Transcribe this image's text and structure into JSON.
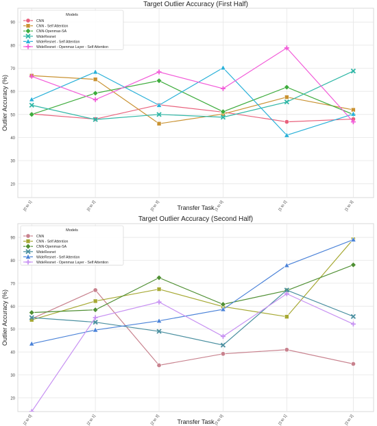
{
  "chart_data": [
    {
      "type": "line",
      "title": "Target Outlier Accuracy (First Half)",
      "xlabel": "Transfer Task",
      "ylabel": "Outlier Accuracy (%)",
      "categories": [
        "[0 to 1]",
        "[0 to 2]",
        "[0 to 3]",
        "[1 to 0]",
        "[1 to 2]",
        "[1 to 3]"
      ],
      "ylim": [
        14,
        96
      ],
      "yticks": [
        20,
        30,
        40,
        50,
        60,
        70,
        80,
        90
      ],
      "grid": true,
      "legend": {
        "title": "Models",
        "placement": "top-left"
      },
      "series": [
        {
          "name": "CNN",
          "values": [
            50.2,
            48.0,
            54.2,
            51.0,
            46.8,
            48.0
          ],
          "color": "#e8607b",
          "marker": "circle"
        },
        {
          "name": "CNN - Self Attention",
          "values": [
            66.8,
            65.2,
            46.0,
            50.2,
            57.5,
            52.0
          ],
          "color": "#c99232",
          "marker": "square"
        },
        {
          "name": "CNN-Openmax-SA",
          "values": [
            50.0,
            59.2,
            64.6,
            51.2,
            61.8,
            50.0
          ],
          "color": "#3eac3d",
          "marker": "diamond"
        },
        {
          "name": "WideResnet",
          "values": [
            54.0,
            47.8,
            50.0,
            48.8,
            55.4,
            68.8
          ],
          "color": "#2fb7a6",
          "marker": "x"
        },
        {
          "name": "WideResnet - Self Attention",
          "values": [
            56.5,
            68.4,
            54.0,
            70.2,
            41.0,
            50.2
          ],
          "color": "#28b0d8",
          "marker": "triangle"
        },
        {
          "name": "WideResnet - Openmax Layer - Self Attention",
          "values": [
            66.5,
            56.4,
            68.4,
            61.2,
            78.8,
            46.8
          ],
          "color": "#f25ad8",
          "marker": "plus"
        }
      ]
    },
    {
      "type": "line",
      "title": "Target Outlier Accuracy (Second Half)",
      "xlabel": "Transfer Task",
      "ylabel": "Outlier Accuracy (%)",
      "categories": [
        "[2 to 0]",
        "[2 to 1]",
        "[2 to 3]",
        "[3 to 0]",
        "[3 to 1]",
        "[3 to 2]"
      ],
      "ylim": [
        14,
        96
      ],
      "yticks": [
        20,
        30,
        40,
        50,
        60,
        70,
        80,
        90
      ],
      "grid": true,
      "legend": {
        "title": "Models",
        "placement": "top-left"
      },
      "series": [
        {
          "name": "CNN",
          "values": [
            54.5,
            67.0,
            34.2,
            39.2,
            41.0,
            34.8
          ],
          "color": "#c8828e",
          "marker": "circle"
        },
        {
          "name": "CNN - Self Attention",
          "values": [
            54.0,
            62.2,
            67.4,
            59.8,
            55.4,
            89.2
          ],
          "color": "#a6a832",
          "marker": "square"
        },
        {
          "name": "CNN-Openmax-SA",
          "values": [
            57.2,
            58.4,
            72.4,
            60.8,
            66.8,
            78.0
          ],
          "color": "#4f8f33",
          "marker": "diamond"
        },
        {
          "name": "WideResnet",
          "values": [
            55.0,
            53.0,
            49.0,
            43.0,
            67.0,
            55.5
          ],
          "color": "#4a8fa0",
          "marker": "x"
        },
        {
          "name": "WideResnet - Self Attention",
          "values": [
            43.6,
            49.6,
            53.6,
            58.6,
            77.8,
            89.0
          ],
          "color": "#4a82d8",
          "marker": "triangle"
        },
        {
          "name": "WideResnet - Openmax Layer - Self Attention",
          "values": [
            14.0,
            55.0,
            61.8,
            46.8,
            65.4,
            52.2
          ],
          "color": "#c791f2",
          "marker": "plus"
        }
      ]
    }
  ]
}
